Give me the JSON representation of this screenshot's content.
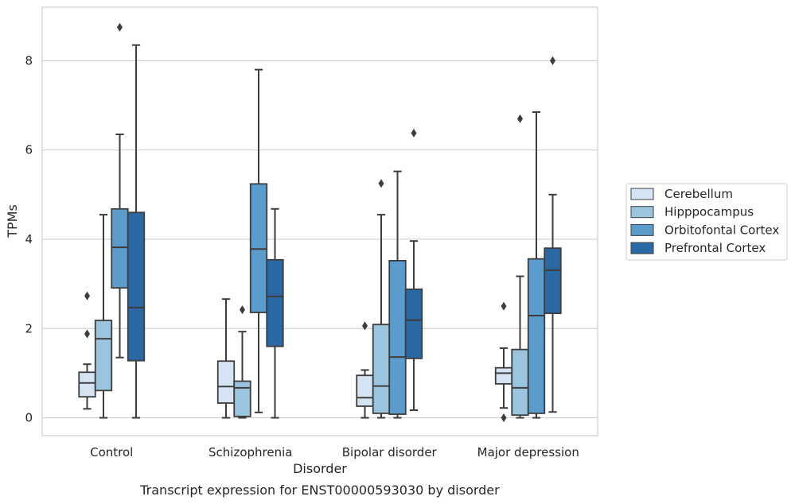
{
  "chart_data": {
    "type": "boxplot",
    "title": "Transcript expression for ENST00000593030 by disorder",
    "xlabel": "Disorder",
    "ylabel": "TPMs",
    "ylim": [
      -0.4,
      9.2
    ],
    "yticks": [
      0,
      2,
      4,
      6,
      8
    ],
    "grid": true,
    "legend_position": "right",
    "categories": [
      "Control",
      "Schizophrenia",
      "Bipolar disorder",
      "Major depression"
    ],
    "series": [
      {
        "name": "Cerebellum",
        "color": "#d4e4f3",
        "boxes": [
          {
            "whislo": 0.2,
            "q1": 0.47,
            "med": 0.78,
            "q3": 1.02,
            "whishi": 1.2,
            "fliers": [
              1.88,
              2.73
            ]
          },
          {
            "whislo": 0.0,
            "q1": 0.33,
            "med": 0.7,
            "q3": 1.27,
            "whishi": 2.66,
            "fliers": []
          },
          {
            "whislo": 0.0,
            "q1": 0.26,
            "med": 0.45,
            "q3": 0.95,
            "whishi": 1.07,
            "fliers": [
              2.06
            ]
          },
          {
            "whislo": 0.22,
            "q1": 0.76,
            "med": 1.0,
            "q3": 1.12,
            "whishi": 1.56,
            "fliers": [
              0.0,
              2.5
            ]
          }
        ]
      },
      {
        "name": "Hipppocampus",
        "color": "#9bc5df",
        "boxes": [
          {
            "whislo": 0.0,
            "q1": 0.61,
            "med": 1.77,
            "q3": 2.18,
            "whishi": 4.55,
            "fliers": []
          },
          {
            "whislo": 0.0,
            "q1": 0.03,
            "med": 0.67,
            "q3": 0.82,
            "whishi": 1.93,
            "fliers": [
              2.42
            ]
          },
          {
            "whislo": 0.0,
            "q1": 0.1,
            "med": 0.71,
            "q3": 2.09,
            "whishi": 4.55,
            "fliers": [
              5.25
            ]
          },
          {
            "whislo": 0.0,
            "q1": 0.06,
            "med": 0.67,
            "q3": 1.53,
            "whishi": 3.17,
            "fliers": [
              6.7
            ]
          }
        ]
      },
      {
        "name": "Orbitofontal Cortex",
        "color": "#5a9ccb",
        "boxes": [
          {
            "whislo": 1.35,
            "q1": 2.91,
            "med": 3.82,
            "q3": 4.68,
            "whishi": 6.35,
            "fliers": [
              8.75
            ]
          },
          {
            "whislo": 0.12,
            "q1": 2.36,
            "med": 3.78,
            "q3": 5.24,
            "whishi": 7.8,
            "fliers": []
          },
          {
            "whislo": 0.0,
            "q1": 0.08,
            "med": 1.36,
            "q3": 3.52,
            "whishi": 5.52,
            "fliers": []
          },
          {
            "whislo": 0.0,
            "q1": 0.1,
            "med": 2.29,
            "q3": 3.56,
            "whishi": 6.85,
            "fliers": []
          }
        ]
      },
      {
        "name": "Prefrontal Cortex",
        "color": "#2b69a6",
        "boxes": [
          {
            "whislo": 0.0,
            "q1": 1.28,
            "med": 2.47,
            "q3": 4.6,
            "whishi": 8.35,
            "fliers": []
          },
          {
            "whislo": 0.0,
            "q1": 1.6,
            "med": 2.72,
            "q3": 3.54,
            "whishi": 4.68,
            "fliers": []
          },
          {
            "whislo": 0.17,
            "q1": 1.33,
            "med": 2.19,
            "q3": 2.88,
            "whishi": 3.96,
            "fliers": [
              6.38
            ]
          },
          {
            "whislo": 0.13,
            "q1": 2.34,
            "med": 3.31,
            "q3": 3.8,
            "whishi": 5.0,
            "fliers": [
              8.0
            ]
          }
        ]
      }
    ]
  }
}
